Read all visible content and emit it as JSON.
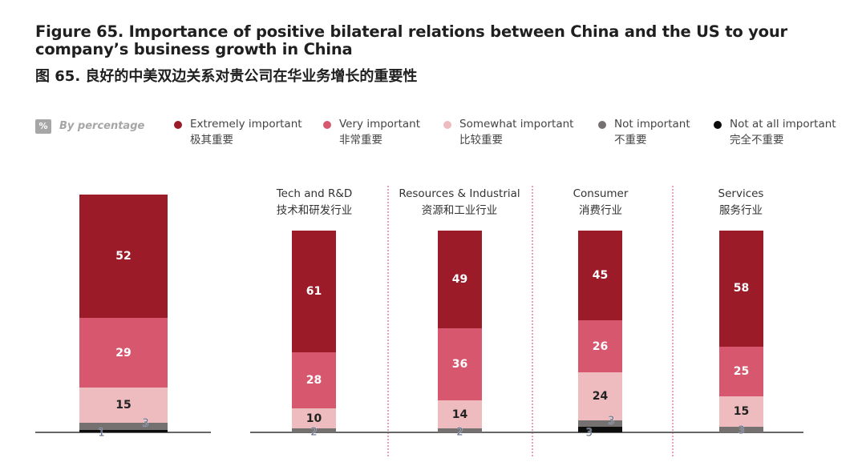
{
  "header": {
    "title_en": "Figure 65. Importance of positive bilateral relations between China and the US to your company’s business growth in China",
    "title_zh": "图 65. 良好的中美双边关系对贵公司在华业务增长的重要性"
  },
  "legend": {
    "badge": "%",
    "unit_label": "By percentage",
    "items": [
      {
        "en": "Extremely important",
        "zh": "极其重要",
        "color": "#9b1b29"
      },
      {
        "en": "Very important",
        "zh": "非常重要",
        "color": "#d6576e"
      },
      {
        "en": "Somewhat important",
        "zh": "比较重要",
        "color": "#eebcbe"
      },
      {
        "en": "Not important",
        "zh": "不重要",
        "color": "#767171"
      },
      {
        "en": "Not at all important",
        "zh": "完全不重要",
        "color": "#0d0d0d"
      }
    ]
  },
  "chart_data": {
    "type": "bar",
    "stacked": true,
    "title": "Figure 65. Importance of positive bilateral relations between China and the US to your company’s business growth in China",
    "subtitle": "图 65. 良好的中美双边关系对贵公司在华业务增长的重要性",
    "unit": "By percentage",
    "categories": [
      {
        "en": "",
        "zh": ""
      },
      {
        "en": "Tech and R&D",
        "zh": "技术和研发行业"
      },
      {
        "en": "Resources & Industrial",
        "zh": "资源和工业行业"
      },
      {
        "en": "Consumer",
        "zh": "消费行业"
      },
      {
        "en": "Services",
        "zh": "服务行业"
      }
    ],
    "series": [
      {
        "name": "Extremely important",
        "name_zh": "极其重要",
        "color": "#9b1b29",
        "values": [
          52,
          61,
          49,
          45,
          58
        ]
      },
      {
        "name": "Very important",
        "name_zh": "非常重要",
        "color": "#d6576e",
        "values": [
          29,
          28,
          36,
          26,
          25
        ]
      },
      {
        "name": "Somewhat important",
        "name_zh": "比较重要",
        "color": "#eebcbe",
        "values": [
          15,
          10,
          14,
          24,
          15
        ]
      },
      {
        "name": "Not important",
        "name_zh": "不重要",
        "color": "#767171",
        "values": [
          3,
          2,
          2,
          3,
          3
        ]
      },
      {
        "name": "Not at all important",
        "name_zh": "完全不重要",
        "color": "#0d0d0d",
        "values": [
          1,
          0,
          0,
          3,
          0
        ]
      }
    ],
    "ylim": [
      0,
      100
    ],
    "grid": false,
    "legend_position": "top"
  }
}
